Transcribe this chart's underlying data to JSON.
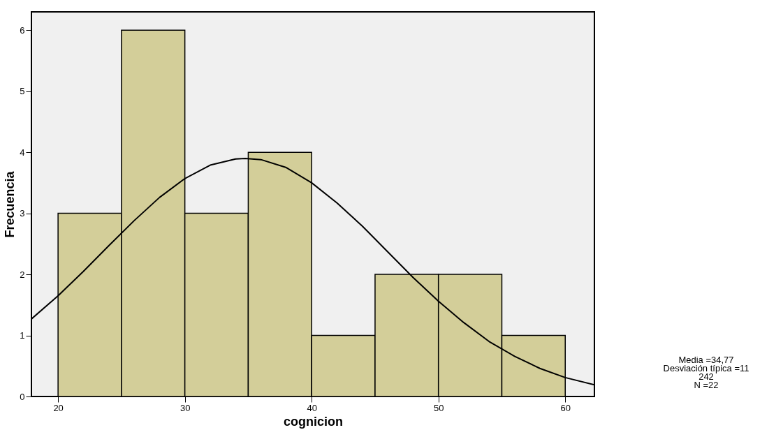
{
  "chart_data": {
    "type": "histogram",
    "xlabel": "cognicion",
    "ylabel": "Frecuencia",
    "bins": [
      20,
      25,
      30,
      35,
      40,
      45,
      50,
      55,
      60
    ],
    "values": [
      3,
      6,
      3,
      4,
      1,
      2,
      2,
      1
    ],
    "color": "#d3ce99",
    "xlim": [
      17.9,
      62.3
    ],
    "xticks": [
      20,
      30,
      40,
      50,
      60
    ],
    "ylim": [
      0,
      6.3
    ],
    "yticks": [
      0,
      1,
      2,
      3,
      4,
      5,
      6
    ],
    "grid": false,
    "series": [
      {
        "type": "line",
        "color": "#000000",
        "x": [
          17.9,
          20,
          22,
          24,
          26,
          28,
          30,
          32,
          34,
          34.77,
          36,
          38,
          40,
          42,
          44,
          46,
          48,
          50,
          52,
          54,
          56,
          58,
          60,
          62.3
        ],
        "values": [
          1.27,
          1.65,
          2.05,
          2.47,
          2.88,
          3.26,
          3.57,
          3.79,
          3.89,
          3.9,
          3.88,
          3.75,
          3.5,
          3.17,
          2.79,
          2.37,
          1.95,
          1.56,
          1.21,
          0.9,
          0.66,
          0.46,
          0.31,
          0.19
        ]
      }
    ],
    "annotations": [
      "Media =34,77",
      "Desviación típica =11",
      "242",
      "N =22"
    ]
  }
}
